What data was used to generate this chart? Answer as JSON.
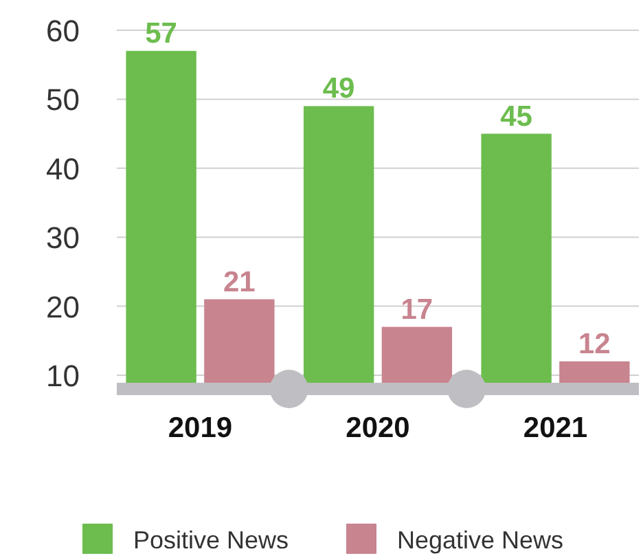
{
  "chart_data": {
    "type": "bar",
    "categories": [
      "2019",
      "2020",
      "2021"
    ],
    "series": [
      {
        "name": "Positive News",
        "color": "#6cbd4e",
        "values": [
          57,
          49,
          45
        ]
      },
      {
        "name": "Negative News",
        "color": "#c8848f",
        "values": [
          21,
          17,
          12
        ]
      }
    ],
    "ylim": [
      8,
      60
    ],
    "yticks": [
      10,
      20,
      30,
      40,
      50,
      60
    ],
    "grid": "y",
    "legend": "bottom",
    "data_labels": true
  }
}
